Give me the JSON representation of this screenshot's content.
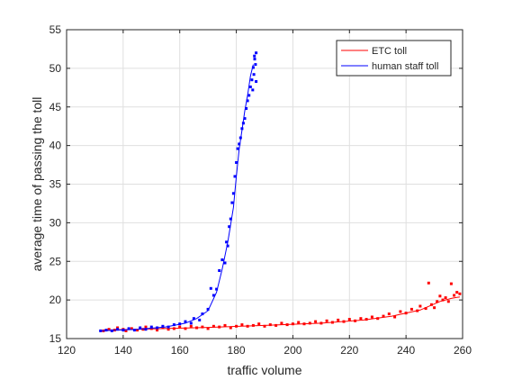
{
  "chart_data": {
    "type": "scatter",
    "xlabel": "traffic volume",
    "ylabel": "average time of passing the toll",
    "xlim": [
      120,
      260
    ],
    "ylim": [
      15,
      55
    ],
    "xticks": [
      120,
      140,
      160,
      180,
      200,
      220,
      240,
      260
    ],
    "yticks": [
      15,
      20,
      25,
      30,
      35,
      40,
      45,
      50,
      55
    ],
    "grid": true,
    "legend_position": "top-right",
    "series": [
      {
        "name": "ETC toll",
        "color": "#ff0000",
        "fit_line": [
          [
            133,
            16.1
          ],
          [
            150,
            16.25
          ],
          [
            170,
            16.45
          ],
          [
            190,
            16.7
          ],
          [
            210,
            17.0
          ],
          [
            225,
            17.4
          ],
          [
            235,
            17.9
          ],
          [
            245,
            18.7
          ],
          [
            252,
            19.8
          ],
          [
            256,
            20.2
          ],
          [
            259,
            20.4
          ]
        ],
        "points": [
          [
            133,
            16.0
          ],
          [
            135,
            16.2
          ],
          [
            137,
            16.1
          ],
          [
            138,
            16.4
          ],
          [
            140,
            16.2
          ],
          [
            141,
            16.0
          ],
          [
            143,
            16.3
          ],
          [
            145,
            16.1
          ],
          [
            147,
            16.2
          ],
          [
            148,
            16.5
          ],
          [
            150,
            16.3
          ],
          [
            152,
            16.1
          ],
          [
            154,
            16.4
          ],
          [
            156,
            16.2
          ],
          [
            158,
            16.3
          ],
          [
            160,
            16.5
          ],
          [
            162,
            16.3
          ],
          [
            164,
            16.6
          ],
          [
            166,
            16.4
          ],
          [
            168,
            16.5
          ],
          [
            170,
            16.3
          ],
          [
            172,
            16.6
          ],
          [
            174,
            16.5
          ],
          [
            176,
            16.7
          ],
          [
            178,
            16.4
          ],
          [
            180,
            16.6
          ],
          [
            182,
            16.8
          ],
          [
            184,
            16.6
          ],
          [
            186,
            16.7
          ],
          [
            188,
            16.9
          ],
          [
            190,
            16.6
          ],
          [
            192,
            16.8
          ],
          [
            194,
            16.7
          ],
          [
            196,
            17.0
          ],
          [
            198,
            16.8
          ],
          [
            200,
            16.9
          ],
          [
            202,
            17.1
          ],
          [
            204,
            16.9
          ],
          [
            206,
            17.0
          ],
          [
            208,
            17.2
          ],
          [
            210,
            17.0
          ],
          [
            212,
            17.3
          ],
          [
            214,
            17.1
          ],
          [
            216,
            17.4
          ],
          [
            218,
            17.2
          ],
          [
            220,
            17.5
          ],
          [
            222,
            17.3
          ],
          [
            224,
            17.6
          ],
          [
            226,
            17.5
          ],
          [
            228,
            17.8
          ],
          [
            230,
            17.6
          ],
          [
            232,
            17.9
          ],
          [
            234,
            18.2
          ],
          [
            236,
            17.8
          ],
          [
            238,
            18.5
          ],
          [
            240,
            18.3
          ],
          [
            242,
            18.8
          ],
          [
            244,
            18.6
          ],
          [
            245,
            19.2
          ],
          [
            247,
            18.9
          ],
          [
            248,
            22.2
          ],
          [
            249,
            19.4
          ],
          [
            250,
            19.0
          ],
          [
            251,
            19.8
          ],
          [
            252,
            20.5
          ],
          [
            253,
            20.0
          ],
          [
            254,
            20.3
          ],
          [
            255,
            19.8
          ],
          [
            256,
            22.1
          ],
          [
            257,
            20.6
          ],
          [
            258,
            21.0
          ],
          [
            259,
            20.8
          ]
        ]
      },
      {
        "name": "human staff toll",
        "color": "#0000ff",
        "fit_line": [
          [
            132,
            16.0
          ],
          [
            145,
            16.2
          ],
          [
            155,
            16.5
          ],
          [
            162,
            17.0
          ],
          [
            166,
            17.6
          ],
          [
            170,
            18.6
          ],
          [
            173,
            21.0
          ],
          [
            175,
            24.0
          ],
          [
            177,
            27.5
          ],
          [
            179,
            32.0
          ],
          [
            180,
            36.0
          ],
          [
            181,
            39.5
          ],
          [
            182,
            42.0
          ],
          [
            183,
            44.5
          ],
          [
            184,
            46.5
          ],
          [
            185,
            49.0
          ],
          [
            186,
            50.5
          ]
        ],
        "points": [
          [
            132,
            16.0
          ],
          [
            134,
            16.1
          ],
          [
            136,
            16.0
          ],
          [
            138,
            16.2
          ],
          [
            140,
            16.1
          ],
          [
            142,
            16.3
          ],
          [
            144,
            16.1
          ],
          [
            146,
            16.4
          ],
          [
            148,
            16.2
          ],
          [
            150,
            16.5
          ],
          [
            152,
            16.4
          ],
          [
            154,
            16.6
          ],
          [
            156,
            16.5
          ],
          [
            158,
            16.8
          ],
          [
            160,
            16.9
          ],
          [
            162,
            17.2
          ],
          [
            164,
            17.0
          ],
          [
            165,
            17.6
          ],
          [
            167,
            17.4
          ],
          [
            168,
            18.2
          ],
          [
            170,
            18.8
          ],
          [
            171,
            21.5
          ],
          [
            172,
            20.6
          ],
          [
            173,
            21.4
          ],
          [
            174,
            23.8
          ],
          [
            175,
            25.2
          ],
          [
            176,
            24.8
          ],
          [
            176.5,
            27.5
          ],
          [
            177,
            27.0
          ],
          [
            177.5,
            29.5
          ],
          [
            178,
            30.5
          ],
          [
            178.5,
            32.6
          ],
          [
            179,
            33.8
          ],
          [
            179.5,
            36.0
          ],
          [
            180,
            37.8
          ],
          [
            180.5,
            39.6
          ],
          [
            181,
            40.2
          ],
          [
            181.5,
            41.0
          ],
          [
            182,
            42.2
          ],
          [
            182.5,
            42.9
          ],
          [
            183,
            43.5
          ],
          [
            183.5,
            44.8
          ],
          [
            184,
            45.8
          ],
          [
            184.5,
            46.5
          ],
          [
            185,
            47.6
          ],
          [
            185.5,
            48.5
          ],
          [
            186,
            50.1
          ],
          [
            186.5,
            51.2
          ],
          [
            187,
            52.0
          ],
          [
            186.2,
            49.2
          ],
          [
            186.8,
            50.5
          ],
          [
            185.8,
            47.2
          ],
          [
            186.4,
            51.6
          ],
          [
            187,
            48.3
          ]
        ]
      }
    ]
  }
}
